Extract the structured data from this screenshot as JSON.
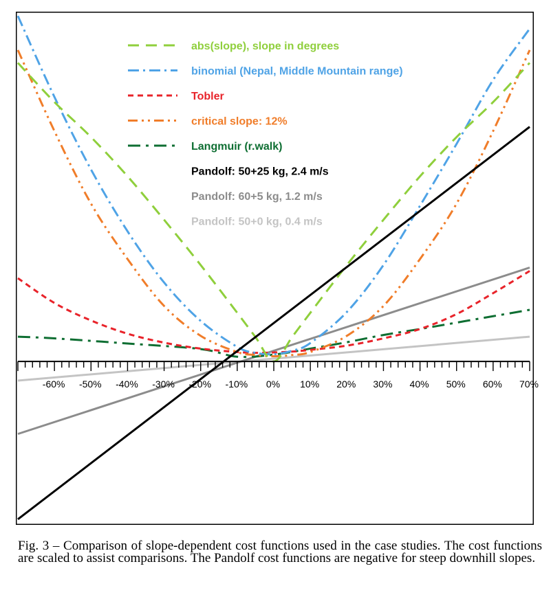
{
  "chart_data": {
    "type": "line",
    "xlabel": "",
    "ylabel": "",
    "xlim": [
      -70,
      70
    ],
    "ylim": [
      -38,
      82
    ],
    "grid": false,
    "legend_position": "top-center",
    "x_ticks": [
      "-60%",
      "-50%",
      "-40%",
      "-30%",
      "-20%",
      "-10%",
      "0%",
      "10%",
      "20%",
      "30%",
      "40%",
      "50%",
      "60%",
      "70%"
    ],
    "x_tick_values": [
      -60,
      -50,
      -40,
      -30,
      -20,
      -10,
      0,
      10,
      20,
      30,
      40,
      50,
      60,
      70
    ],
    "series": [
      {
        "name": "abs(slope), slope in degrees",
        "color": "#8fcf3c",
        "dash": "dash",
        "x": [
          -70,
          -60,
          -50,
          -40,
          -30,
          -20,
          -10,
          -5,
          0,
          5,
          10,
          20,
          30,
          40,
          50,
          60,
          70
        ],
        "y": [
          70,
          60.8,
          52.6,
          43.4,
          33.2,
          22.6,
          11.4,
          5.7,
          0,
          5.7,
          11.4,
          22.6,
          33.2,
          43.4,
          52.6,
          60.8,
          70
        ]
      },
      {
        "name": "binomial (Nepal, Middle Mountain range)",
        "color": "#4fa3e6",
        "dash": "dashdot",
        "x": [
          -70,
          -60,
          -50,
          -40,
          -30,
          -20,
          -10,
          -5,
          0,
          5,
          10,
          20,
          30,
          40,
          50,
          60,
          70
        ],
        "y": [
          81,
          62,
          45,
          30.5,
          18.5,
          9.5,
          3.4,
          2,
          1.7,
          2.5,
          4.3,
          11.6,
          22.6,
          36.5,
          51,
          66,
          78
        ]
      },
      {
        "name": "Tobler",
        "color": "#e8232a",
        "dash": "shortdash",
        "x": [
          -70,
          -60,
          -50,
          -40,
          -30,
          -20,
          -10,
          -5,
          0,
          5,
          10,
          20,
          30,
          40,
          50,
          60,
          70
        ],
        "y": [
          19.5,
          13.7,
          9.6,
          6.5,
          4.4,
          3.0,
          2.2,
          2.0,
          2.1,
          2.3,
          2.7,
          3.7,
          5.4,
          7.6,
          11.1,
          16,
          21.2
        ]
      },
      {
        "name": "critical slope: 12%",
        "color": "#f07d2a",
        "dash": "dashdotdot",
        "x": [
          -70,
          -60,
          -50,
          -40,
          -30,
          -20,
          -10,
          -5,
          0,
          5,
          10,
          20,
          30,
          40,
          50,
          60,
          70
        ],
        "y": [
          73,
          54,
          37,
          24,
          13,
          6,
          2.2,
          1.5,
          1.2,
          1.5,
          2.2,
          6,
          13,
          24,
          37,
          54,
          73
        ]
      },
      {
        "name": "Langmuir (r.walk)",
        "color": "#0e6e32",
        "dash": "longdash",
        "x": [
          -70,
          -60,
          -40,
          -20,
          -10,
          0,
          10,
          20,
          30,
          40,
          50,
          60,
          70
        ],
        "y": [
          5.8,
          5.4,
          4.2,
          2.9,
          1.1,
          1.6,
          3.0,
          4.5,
          6.2,
          7.6,
          9.1,
          10.6,
          12.1
        ]
      },
      {
        "name": "Pandolf: 50+25 kg, 2.4 m/s",
        "color": "#000000",
        "dash": "solid",
        "x": [
          -70,
          70
        ],
        "y": [
          -37,
          55
        ]
      },
      {
        "name": "Pandolf: 60+5 kg, 1.2 m/s",
        "color": "#8c8c8c",
        "dash": "solid",
        "x": [
          -70,
          70
        ],
        "y": [
          -17,
          22
        ]
      },
      {
        "name": "Pandolf: 50+0 kg, 0.4 m/s",
        "color": "#c4c4c4",
        "dash": "solid",
        "x": [
          -70,
          70
        ],
        "y": [
          -4.5,
          5.8
        ]
      }
    ]
  },
  "caption": {
    "text": "Fig. 3 – Comparison of slope-dependent cost functions used in the case studies. The cost functions are scaled to assist comparisons. The Pandolf cost functions are negative for steep downhill slopes."
  }
}
